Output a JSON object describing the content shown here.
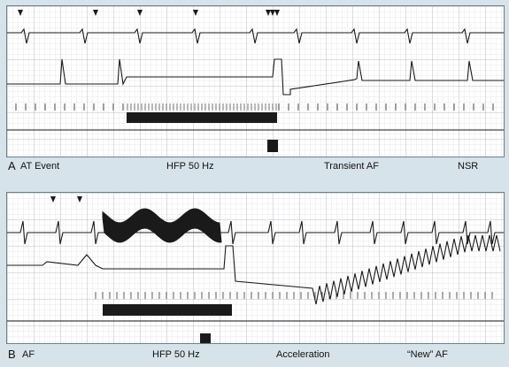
{
  "panel_a": {
    "letter": "A",
    "labels": [
      "AT Event",
      "HFP 50 Hz",
      "Transient AF",
      "NSR"
    ]
  },
  "panel_b": {
    "letter": "B",
    "labels": [
      "AF",
      "HFP 50 Hz",
      "Acceleration",
      "“New” AF"
    ]
  },
  "colors": {
    "background": "#d7e3ea",
    "paper": "#ffffff",
    "grid": "#b9bec2",
    "trace": "#1a1a1a"
  }
}
